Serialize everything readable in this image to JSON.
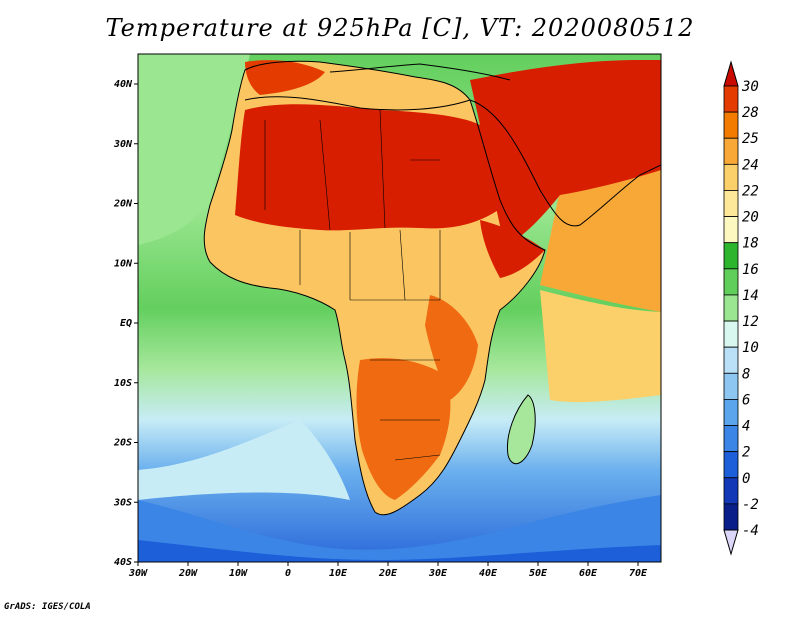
{
  "title": "Temperature at 925hPa [C], VT: 2020080512",
  "credit": "GrADS: IGES/COLA",
  "map": {
    "lat_ticks": [
      "40N",
      "30N",
      "20N",
      "10N",
      "EQ",
      "10S",
      "20S",
      "30S",
      "40S"
    ],
    "lon_ticks": [
      "30W",
      "20W",
      "10W",
      "0",
      "10E",
      "20E",
      "30E",
      "40E",
      "50E",
      "60E",
      "70E"
    ],
    "lon_range": [
      -30,
      75
    ],
    "lat_range": [
      -40,
      45
    ]
  },
  "colorbar": {
    "labels": [
      "30",
      "28",
      "25",
      "24",
      "22",
      "20",
      "18",
      "16",
      "14",
      "12",
      "10",
      "8",
      "6",
      "4",
      "2",
      "0",
      "-2",
      "-4"
    ],
    "colors": [
      "#c80a00",
      "#e43c00",
      "#f37c00",
      "#f8a836",
      "#fbd06a",
      "#fde89a",
      "#fdf8c0",
      "#2db52d",
      "#60ce5a",
      "#9be690",
      "#d8f7ee",
      "#b9e0f7",
      "#8ec6f2",
      "#5aa5ec",
      "#3a85e6",
      "#1d5fd8",
      "#1238b8",
      "#0a1e8a",
      "#dcd6f8"
    ]
  },
  "colors": {
    "ocean_cold": "#2a68d9",
    "ocean_cool": "#6bb0ee",
    "ocean_mild": "#c7ecf6",
    "ocean_green": "#63cf5e",
    "ocean_pale": "#a6e79c",
    "land_hot": "#d81e00",
    "land_warm": "#ef6a10",
    "land_mild": "#fbc662",
    "land_cool": "#fde79a"
  }
}
